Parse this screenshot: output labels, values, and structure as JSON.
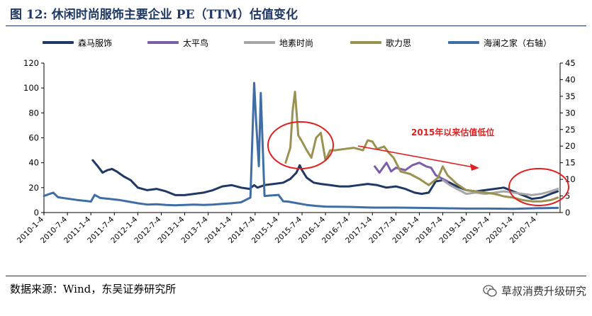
{
  "header": {
    "title": "图 12: 休闲时尚服饰主要企业 PE（TTM）估值变化"
  },
  "footer": {
    "source": "数据来源：Wind，东吴证券研究所",
    "watermark": "草叔消费升级研究"
  },
  "colors": {
    "semir": "#1f3864",
    "peacebird": "#7b5ea8",
    "elf": "#a6a6a6",
    "ellassay": "#9b9150",
    "hla": "#3f6ea6",
    "accent": "#e02020",
    "title": "#1f3864"
  },
  "chart_data": {
    "type": "line",
    "title": "休闲时尚服饰主要企业 PE（TTM）估值变化",
    "xlabel": "",
    "ylabel_left": "",
    "ylabel_right": "",
    "ylim_left": [
      0,
      120
    ],
    "ylim_right": [
      0,
      45
    ],
    "yticks_left": [
      "0",
      "20",
      "40",
      "60",
      "80",
      "100",
      "120"
    ],
    "yticks_right": [
      "0",
      "5",
      "10",
      "15",
      "20",
      "25",
      "30",
      "35",
      "40",
      "45"
    ],
    "x_ticks": [
      "2010-1-4",
      "2010-7-4",
      "2011-1-4",
      "2011-7-4",
      "2012-1-4",
      "2012-7-4",
      "2013-1-4",
      "2013-7-4",
      "2014-1-4",
      "2014-7-4",
      "2015-1-4",
      "2015-7-4",
      "2016-1-4",
      "2016-7-4",
      "2017-1-4",
      "2017-7-4",
      "2018-1-4",
      "2018-7-4",
      "2019-1-4",
      "2019-7-4",
      "2020-1-4",
      "2020-7-4"
    ],
    "annotation": "2015年以来估值低位",
    "legend_position": "top",
    "series": [
      {
        "name": "森马服饰",
        "axis": "left",
        "points": [
          [
            2011.04,
            42
          ],
          [
            2011.15,
            37
          ],
          [
            2011.25,
            32
          ],
          [
            2011.35,
            34
          ],
          [
            2011.45,
            35
          ],
          [
            2011.55,
            33
          ],
          [
            2011.7,
            29
          ],
          [
            2011.85,
            26
          ],
          [
            2012.0,
            20
          ],
          [
            2012.2,
            18
          ],
          [
            2012.4,
            19
          ],
          [
            2012.6,
            17
          ],
          [
            2012.8,
            14
          ],
          [
            2013.0,
            14
          ],
          [
            2013.2,
            15
          ],
          [
            2013.4,
            16
          ],
          [
            2013.6,
            18
          ],
          [
            2013.8,
            21
          ],
          [
            2014.0,
            22
          ],
          [
            2014.2,
            20
          ],
          [
            2014.38,
            19
          ],
          [
            2014.48,
            22
          ],
          [
            2014.55,
            20
          ],
          [
            2014.7,
            22
          ],
          [
            2014.9,
            23
          ],
          [
            2015.1,
            24
          ],
          [
            2015.25,
            27
          ],
          [
            2015.38,
            32
          ],
          [
            2015.45,
            38
          ],
          [
            2015.5,
            34
          ],
          [
            2015.6,
            28
          ],
          [
            2015.75,
            24
          ],
          [
            2015.9,
            23
          ],
          [
            2016.1,
            22
          ],
          [
            2016.3,
            21
          ],
          [
            2016.5,
            21
          ],
          [
            2016.7,
            22
          ],
          [
            2016.9,
            23
          ],
          [
            2017.1,
            22
          ],
          [
            2017.3,
            20
          ],
          [
            2017.5,
            21
          ],
          [
            2017.7,
            19
          ],
          [
            2017.9,
            16
          ],
          [
            2018.05,
            15
          ],
          [
            2018.2,
            16
          ],
          [
            2018.35,
            25
          ],
          [
            2018.5,
            26
          ],
          [
            2018.65,
            24
          ],
          [
            2018.8,
            21
          ],
          [
            2019.0,
            18
          ],
          [
            2019.2,
            17
          ],
          [
            2019.4,
            18
          ],
          [
            2019.6,
            19
          ],
          [
            2019.8,
            20
          ],
          [
            2020.0,
            17
          ],
          [
            2020.2,
            14
          ],
          [
            2020.4,
            11
          ],
          [
            2020.6,
            12
          ],
          [
            2020.8,
            15
          ],
          [
            2020.95,
            17
          ]
        ]
      },
      {
        "name": "太平鸟",
        "axis": "left",
        "points": [
          [
            2017.05,
            37
          ],
          [
            2017.15,
            32
          ],
          [
            2017.3,
            40
          ],
          [
            2017.4,
            33
          ],
          [
            2017.5,
            36
          ],
          [
            2017.7,
            34
          ],
          [
            2017.85,
            38
          ],
          [
            2018.0,
            40
          ],
          [
            2018.15,
            37
          ],
          [
            2018.25,
            36
          ],
          [
            2018.35,
            30
          ],
          [
            2018.45,
            28
          ],
          [
            2018.6,
            25
          ]
        ]
      },
      {
        "name": "地素时尚",
        "axis": "left",
        "points": [
          [
            2018.5,
            26
          ],
          [
            2018.65,
            22
          ],
          [
            2018.8,
            19
          ],
          [
            2019.0,
            15
          ],
          [
            2019.2,
            16
          ],
          [
            2019.4,
            15
          ],
          [
            2019.6,
            16
          ],
          [
            2019.8,
            17
          ],
          [
            2020.0,
            16
          ],
          [
            2020.2,
            15
          ],
          [
            2020.4,
            14
          ],
          [
            2020.6,
            15
          ],
          [
            2020.8,
            17
          ],
          [
            2020.95,
            19
          ]
        ]
      },
      {
        "name": "歌力思",
        "axis": "left",
        "points": [
          [
            2015.15,
            40
          ],
          [
            2015.25,
            52
          ],
          [
            2015.3,
            82
          ],
          [
            2015.35,
            97
          ],
          [
            2015.42,
            62
          ],
          [
            2015.5,
            57
          ],
          [
            2015.6,
            50
          ],
          [
            2015.7,
            44
          ],
          [
            2015.8,
            60
          ],
          [
            2015.9,
            64
          ],
          [
            2016.0,
            42
          ],
          [
            2016.1,
            50
          ],
          [
            2016.2,
            50
          ],
          [
            2016.4,
            51
          ],
          [
            2016.6,
            52
          ],
          [
            2016.8,
            50
          ],
          [
            2016.9,
            58
          ],
          [
            2017.0,
            57
          ],
          [
            2017.1,
            51
          ],
          [
            2017.25,
            53
          ],
          [
            2017.35,
            48
          ],
          [
            2017.45,
            44
          ],
          [
            2017.6,
            33
          ],
          [
            2017.8,
            31
          ],
          [
            2018.0,
            27
          ],
          [
            2018.2,
            22
          ],
          [
            2018.4,
            28
          ],
          [
            2018.5,
            37
          ],
          [
            2018.6,
            30
          ],
          [
            2018.8,
            23
          ],
          [
            2019.0,
            18
          ],
          [
            2019.2,
            17
          ],
          [
            2019.4,
            16
          ],
          [
            2019.6,
            15
          ],
          [
            2019.8,
            13
          ],
          [
            2020.0,
            12
          ],
          [
            2020.2,
            10
          ],
          [
            2020.4,
            9
          ],
          [
            2020.6,
            9
          ],
          [
            2020.8,
            10
          ],
          [
            2020.95,
            12
          ]
        ]
      },
      {
        "name": "海澜之家（右轴）",
        "axis": "right",
        "points": [
          [
            2010.0,
            5
          ],
          [
            2010.1,
            5.5
          ],
          [
            2010.2,
            6
          ],
          [
            2010.3,
            4.6
          ],
          [
            2010.5,
            4.2
          ],
          [
            2010.7,
            3.8
          ],
          [
            2010.9,
            3.5
          ],
          [
            2011.0,
            3.3
          ],
          [
            2011.08,
            5.3
          ],
          [
            2011.2,
            4.4
          ],
          [
            2011.4,
            4.1
          ],
          [
            2011.6,
            3.8
          ],
          [
            2011.8,
            3.3
          ],
          [
            2012.0,
            2.8
          ],
          [
            2012.2,
            2.4
          ],
          [
            2012.4,
            2.5
          ],
          [
            2012.6,
            2.3
          ],
          [
            2012.8,
            2.2
          ],
          [
            2013.0,
            2.3
          ],
          [
            2013.2,
            2.4
          ],
          [
            2013.4,
            2.3
          ],
          [
            2013.6,
            2.4
          ],
          [
            2013.8,
            2.6
          ],
          [
            2014.0,
            2.8
          ],
          [
            2014.2,
            3.1
          ],
          [
            2014.4,
            4.5
          ],
          [
            2014.48,
            39
          ],
          [
            2014.52,
            28
          ],
          [
            2014.58,
            14
          ],
          [
            2014.62,
            36
          ],
          [
            2014.7,
            5
          ],
          [
            2014.9,
            5.2
          ],
          [
            2015.0,
            5.3
          ],
          [
            2015.1,
            3.4
          ],
          [
            2015.2,
            3.3
          ],
          [
            2015.4,
            2.8
          ],
          [
            2015.6,
            2.3
          ],
          [
            2015.8,
            2.0
          ],
          [
            2016.0,
            1.8
          ],
          [
            2016.5,
            1.7
          ],
          [
            2017.0,
            1.5
          ],
          [
            2017.5,
            1.5
          ],
          [
            2018.0,
            1.4
          ],
          [
            2018.5,
            1.3
          ],
          [
            2019.0,
            1.2
          ],
          [
            2019.5,
            1.2
          ],
          [
            2020.0,
            1.1
          ],
          [
            2020.5,
            1.3
          ],
          [
            2020.95,
            1.4
          ]
        ]
      }
    ]
  }
}
